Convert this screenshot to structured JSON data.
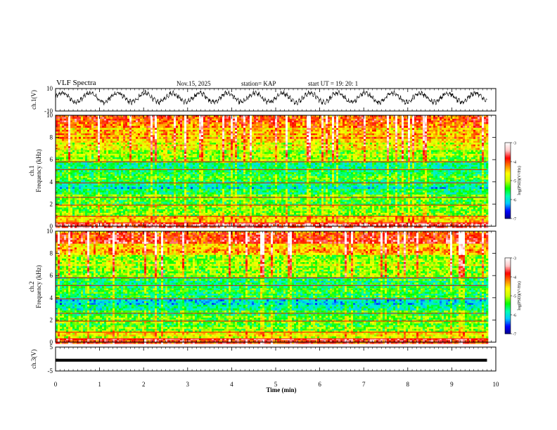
{
  "header": {
    "title": "VLF Spectra",
    "date": "Nov.15, 2025",
    "station": "station= KAP",
    "start_ut": "start  UT  =    19: 20: 1"
  },
  "chart_data": [
    {
      "type": "line",
      "panel": "ch1-waveform",
      "ylabel": "ch.1(V)",
      "ylim": [
        -10,
        10
      ],
      "yticks": [
        10,
        -10
      ],
      "xlim": [
        0,
        10
      ],
      "data_end_min": 9.8,
      "description_of_trace": "voltage waveform oscillating roughly between -3 and 7 V",
      "cycles": 16
    },
    {
      "type": "heatmap",
      "panel": "ch1-spectrogram",
      "ylabel": "ch.1\nFrequency (kHz)",
      "ylim": [
        0,
        10
      ],
      "yticks": [
        0,
        2,
        4,
        6,
        8,
        10
      ],
      "xlim": [
        0,
        10
      ],
      "data_end_min": 9.8,
      "colorbar": {
        "label": "log(PSD)(V²/Hz)",
        "range": [
          -7,
          -3
        ],
        "ticks": [
          -3,
          -4,
          -5,
          -6,
          -7
        ],
        "colormap": [
          "#00008b",
          "#0000ff",
          "#00c8ff",
          "#00ffb4",
          "#00ff00",
          "#c8ff00",
          "#ffff00",
          "#ff8000",
          "#ff0000",
          "#ffc8c8",
          "#ffffff"
        ]
      },
      "bands": [
        {
          "f0": 0.0,
          "f1": 0.5,
          "level": -3.6
        },
        {
          "f0": 0.5,
          "f1": 1.0,
          "level": -4.4
        },
        {
          "f0": 1.0,
          "f1": 2.0,
          "level": -5.1
        },
        {
          "f0": 2.0,
          "f1": 3.0,
          "level": -5.3
        },
        {
          "f0": 3.0,
          "f1": 4.0,
          "level": -5.8
        },
        {
          "f0": 4.0,
          "f1": 5.0,
          "level": -5.5
        },
        {
          "f0": 5.0,
          "f1": 6.0,
          "level": -5.7
        },
        {
          "f0": 6.0,
          "f1": 7.0,
          "level": -5.0
        },
        {
          "f0": 7.0,
          "f1": 8.0,
          "level": -4.8
        },
        {
          "f0": 8.0,
          "f1": 9.0,
          "level": -4.4
        },
        {
          "f0": 9.0,
          "f1": 10.0,
          "level": -4.0
        }
      ]
    },
    {
      "type": "heatmap",
      "panel": "ch2-spectrogram",
      "ylabel": "ch.2\nFrequency (kHz)",
      "ylim": [
        0,
        10
      ],
      "yticks": [
        0,
        2,
        4,
        6,
        8,
        10
      ],
      "xlim": [
        0,
        10
      ],
      "data_end_min": 9.8,
      "colorbar": {
        "label": "log(PSD)(V²/Hz)",
        "range": [
          -7,
          -3
        ],
        "ticks": [
          -3,
          -4,
          -5,
          -6,
          -7
        ],
        "colormap": [
          "#00008b",
          "#0000ff",
          "#00c8ff",
          "#00ffb4",
          "#00ff00",
          "#c8ff00",
          "#ffff00",
          "#ff8000",
          "#ff0000",
          "#ffc8c8",
          "#ffffff"
        ]
      },
      "bands": [
        {
          "f0": 0.0,
          "f1": 0.5,
          "level": -3.8
        },
        {
          "f0": 0.5,
          "f1": 1.0,
          "level": -4.8
        },
        {
          "f0": 1.0,
          "f1": 2.0,
          "level": -5.2
        },
        {
          "f0": 2.0,
          "f1": 3.0,
          "level": -5.4
        },
        {
          "f0": 3.0,
          "f1": 4.0,
          "level": -5.9
        },
        {
          "f0": 4.0,
          "f1": 5.0,
          "level": -5.6
        },
        {
          "f0": 5.0,
          "f1": 6.0,
          "level": -5.6
        },
        {
          "f0": 6.0,
          "f1": 7.0,
          "level": -5.0
        },
        {
          "f0": 7.0,
          "f1": 8.0,
          "level": -4.9
        },
        {
          "f0": 8.0,
          "f1": 9.0,
          "level": -4.4
        },
        {
          "f0": 9.0,
          "f1": 10.0,
          "level": -4.0
        }
      ]
    },
    {
      "type": "line",
      "panel": "ch3-waveform",
      "ylabel": "ch.3(V)",
      "ylim": [
        -5,
        5
      ],
      "yticks": [
        5,
        0,
        -5
      ],
      "xlim": [
        0,
        10
      ],
      "data_end_min": 9.8,
      "trace_center": -0.5,
      "trace_halfwidth": 0.6
    }
  ],
  "x_axis": {
    "label": "Time (min)",
    "ticks": [
      "0",
      "1",
      "2",
      "3",
      "4",
      "5",
      "6",
      "7",
      "8",
      "9",
      "10"
    ]
  }
}
